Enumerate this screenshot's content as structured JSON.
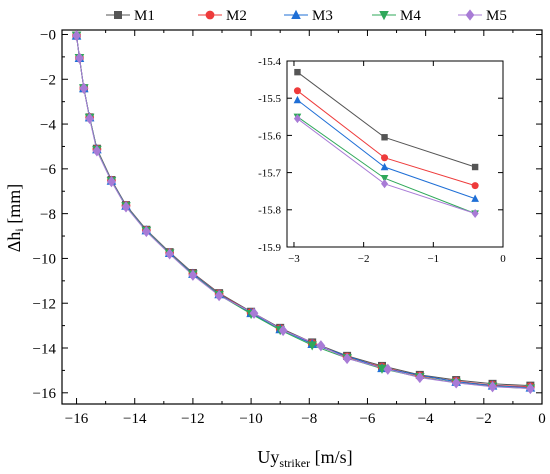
{
  "chart_data": [
    {
      "type": "line",
      "xlabel_main": "Uy",
      "xlabel_sub": "striker",
      "xlabel_unit": " [m/s]",
      "ylabel_main": "Δh",
      "ylabel_sub": "i",
      "ylabel_unit": " [mm]",
      "xlim": [
        -16.5,
        0
      ],
      "ylim": [
        -16.5,
        0.2
      ],
      "xticks": [
        -16,
        -14,
        -12,
        -10,
        -8,
        -6,
        -4,
        -2,
        0
      ],
      "yticks": [
        0,
        -2,
        -4,
        -6,
        -8,
        -10,
        -12,
        -14,
        -16
      ],
      "xtick_labels": [
        "−16",
        "−14",
        "−12",
        "−10",
        "−8",
        "−6",
        "−4",
        "−2",
        "0"
      ],
      "ytick_labels": [
        "−0",
        "−2",
        "−4",
        "−6",
        "−8",
        "−10",
        "−12",
        "−14",
        "−16"
      ],
      "legend": {
        "position": "top",
        "entries": [
          "M1",
          "M2",
          "M3",
          "M4",
          "M5"
        ]
      },
      "series": [
        {
          "name": "M1",
          "color": "#555555",
          "marker": "square",
          "x": [
            -16.0,
            -15.9,
            -15.75,
            -15.55,
            -15.3,
            -14.8,
            -14.3,
            -13.6,
            -12.8,
            -12.0,
            -11.1,
            -10.0,
            -9.0,
            -7.9,
            -6.7,
            -5.5,
            -4.2,
            -2.95,
            -1.7,
            -0.4
          ],
          "y": [
            -0.05,
            -1.05,
            -2.4,
            -3.7,
            -5.1,
            -6.5,
            -7.62,
            -8.72,
            -9.72,
            -10.65,
            -11.55,
            -12.38,
            -13.1,
            -13.75,
            -14.35,
            -14.8,
            -15.2,
            -15.43,
            -15.6,
            -15.68
          ]
        },
        {
          "name": "M2",
          "color": "#ee3b3b",
          "marker": "circle",
          "x": [
            -16.0,
            -15.9,
            -15.75,
            -15.55,
            -15.3,
            -14.8,
            -14.3,
            -13.6,
            -12.8,
            -12.0,
            -11.1,
            -10.0,
            -9.0,
            -7.9,
            -6.7,
            -5.5,
            -4.2,
            -2.95,
            -1.7,
            -0.4
          ],
          "y": [
            -0.05,
            -1.05,
            -2.4,
            -3.7,
            -5.12,
            -6.52,
            -7.64,
            -8.74,
            -9.75,
            -10.68,
            -11.58,
            -12.42,
            -13.14,
            -13.8,
            -14.4,
            -14.85,
            -15.25,
            -15.48,
            -15.66,
            -15.73
          ]
        },
        {
          "name": "M3",
          "color": "#1f6fd6",
          "marker": "triangle-up",
          "x": [
            -16.0,
            -15.9,
            -15.75,
            -15.55,
            -15.3,
            -14.8,
            -14.3,
            -13.6,
            -12.8,
            -12.0,
            -11.1,
            -10.0,
            -9.0,
            -7.9,
            -5.5,
            -2.95,
            -1.7,
            -0.4
          ],
          "y": [
            -0.05,
            -1.05,
            -2.4,
            -3.7,
            -5.13,
            -6.53,
            -7.65,
            -8.75,
            -9.76,
            -10.69,
            -11.6,
            -12.44,
            -13.16,
            -13.82,
            -14.9,
            -15.51,
            -15.68,
            -15.77
          ]
        },
        {
          "name": "M4",
          "color": "#2fa85a",
          "marker": "triangle-down",
          "x": [
            -16.0,
            -15.9,
            -15.75,
            -15.55,
            -15.3,
            -14.8,
            -14.3,
            -13.6,
            -12.8,
            -12.0,
            -11.1,
            -10.0,
            -9.0,
            -7.9,
            -6.7,
            -5.5,
            -4.2,
            -2.95,
            -1.7,
            -0.4
          ],
          "y": [
            -0.05,
            -1.05,
            -2.4,
            -3.72,
            -5.15,
            -6.55,
            -7.67,
            -8.77,
            -9.78,
            -10.72,
            -11.63,
            -12.48,
            -13.2,
            -13.88,
            -14.45,
            -14.92,
            -15.3,
            -15.55,
            -15.72,
            -15.81
          ]
        },
        {
          "name": "M5",
          "color": "#a87bd6",
          "marker": "diamond",
          "x": [
            -16.0,
            -15.9,
            -15.75,
            -15.55,
            -15.3,
            -14.8,
            -14.3,
            -13.6,
            -12.8,
            -12.0,
            -11.1,
            -9.9,
            -8.9,
            -7.6,
            -6.7,
            -5.3,
            -4.2,
            -2.95,
            -1.7,
            -0.4
          ],
          "y": [
            -0.05,
            -1.05,
            -2.4,
            -3.75,
            -5.2,
            -6.57,
            -7.7,
            -8.8,
            -9.8,
            -10.75,
            -11.66,
            -12.45,
            -13.22,
            -13.9,
            -14.47,
            -14.95,
            -15.32,
            -15.56,
            -15.73,
            -15.81
          ]
        }
      ]
    },
    {
      "type": "line",
      "xlim": [
        -3.1,
        0
      ],
      "ylim": [
        -15.9,
        -15.4
      ],
      "xticks": [
        -3,
        -2,
        -1,
        0
      ],
      "yticks": [
        -15.4,
        -15.5,
        -15.6,
        -15.7,
        -15.8,
        -15.9
      ],
      "xtick_labels": [
        "−3",
        "−2",
        "−1",
        "0"
      ],
      "ytick_labels": [
        "-15.4",
        "-15.5",
        "-15.6",
        "-15.7",
        "-15.8",
        "-15.9"
      ],
      "series": [
        {
          "name": "M1",
          "color": "#555555",
          "marker": "square",
          "x": [
            -2.95,
            -1.7,
            -0.4
          ],
          "y": [
            -15.43,
            -15.605,
            -15.685
          ]
        },
        {
          "name": "M2",
          "color": "#ee3b3b",
          "marker": "circle",
          "x": [
            -2.95,
            -1.7,
            -0.4
          ],
          "y": [
            -15.48,
            -15.66,
            -15.735
          ]
        },
        {
          "name": "M3",
          "color": "#1f6fd6",
          "marker": "triangle-up",
          "x": [
            -2.95,
            -1.7,
            -0.4
          ],
          "y": [
            -15.505,
            -15.685,
            -15.77
          ]
        },
        {
          "name": "M4",
          "color": "#2fa85a",
          "marker": "triangle-down",
          "x": [
            -2.95,
            -1.7,
            -0.4
          ],
          "y": [
            -15.55,
            -15.715,
            -15.81
          ]
        },
        {
          "name": "M5",
          "color": "#a87bd6",
          "marker": "diamond",
          "x": [
            -2.95,
            -1.7,
            -0.4
          ],
          "y": [
            -15.555,
            -15.73,
            -15.81
          ]
        }
      ]
    }
  ]
}
